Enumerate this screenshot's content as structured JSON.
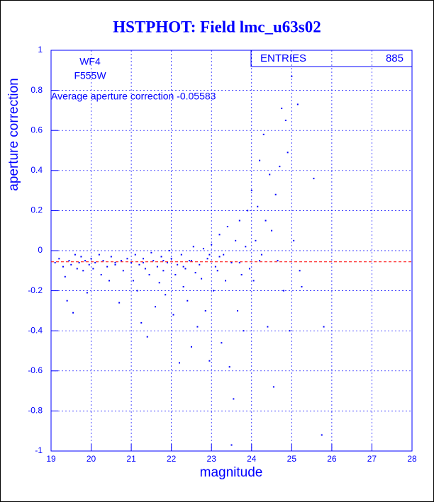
{
  "chart_data": {
    "type": "scatter",
    "title": "HSTPHOT: Field lmc_u63s02",
    "x_label": "magnitude",
    "y_label": "aperture correction",
    "annotations": [
      "WF4",
      "F555W",
      "Average aperture correction -0.05583"
    ],
    "stats": {
      "label": "ENTRIES",
      "value": 885
    },
    "hline": -0.05583,
    "hline_color": "#ff0000",
    "color": "#0000ff",
    "grid": true,
    "xlim": [
      19,
      28
    ],
    "ylim": [
      -1,
      1
    ],
    "xticks": [
      19,
      20,
      21,
      22,
      23,
      24,
      25,
      26,
      27,
      28
    ],
    "yticks": [
      -1,
      -0.8,
      -0.6,
      -0.4,
      -0.2,
      0,
      0.2,
      0.4,
      0.6,
      0.8,
      1
    ],
    "x": [
      19.1,
      19.2,
      19.3,
      19.35,
      19.4,
      19.45,
      19.5,
      19.55,
      19.6,
      19.65,
      19.7,
      19.75,
      19.8,
      19.85,
      19.9,
      19.95,
      20.0,
      20.05,
      20.1,
      20.2,
      20.25,
      20.3,
      20.4,
      20.45,
      20.5,
      20.6,
      20.7,
      20.75,
      20.8,
      20.9,
      21.0,
      21.05,
      21.1,
      21.15,
      21.2,
      21.25,
      21.3,
      21.35,
      21.4,
      21.45,
      21.5,
      21.55,
      21.6,
      21.65,
      21.7,
      21.75,
      21.8,
      21.85,
      21.9,
      21.95,
      22.0,
      22.05,
      22.1,
      22.15,
      22.2,
      22.25,
      22.3,
      22.35,
      22.4,
      22.45,
      22.5,
      22.55,
      22.6,
      22.65,
      22.7,
      22.75,
      22.8,
      22.85,
      22.9,
      22.95,
      23.0,
      23.05,
      23.1,
      23.15,
      23.2,
      23.25,
      23.3,
      23.35,
      23.4,
      23.45,
      23.5,
      23.55,
      23.6,
      23.65,
      23.7,
      23.75,
      23.8,
      23.85,
      23.9,
      23.95,
      24.0,
      24.05,
      24.1,
      24.15,
      24.2,
      24.25,
      24.3,
      24.35,
      24.4,
      24.45,
      24.5,
      24.55,
      24.6,
      24.65,
      24.7,
      24.75,
      24.8,
      24.85,
      24.9,
      24.95,
      25.0,
      25.05,
      25.15,
      25.2,
      25.25,
      25.55,
      25.75,
      25.8,
      23.5,
      22.95,
      22.5,
      22.3,
      23.2,
      21.8,
      21.3,
      20.6,
      23.7,
      24.2
    ],
    "y": [
      -0.06,
      -0.04,
      -0.08,
      -0.13,
      -0.25,
      -0.05,
      -0.07,
      -0.31,
      -0.02,
      -0.09,
      -0.06,
      -0.03,
      -0.1,
      -0.05,
      -0.21,
      -0.07,
      -0.04,
      -0.09,
      -0.06,
      -0.02,
      -0.12,
      -0.05,
      -0.08,
      -0.15,
      -0.03,
      -0.07,
      -0.26,
      -0.05,
      -0.1,
      -0.04,
      -0.06,
      -0.15,
      -0.02,
      -0.2,
      -0.07,
      -0.36,
      -0.04,
      -0.09,
      -0.43,
      -0.12,
      -0.01,
      -0.05,
      -0.28,
      -0.08,
      -0.16,
      -0.03,
      -0.1,
      -0.22,
      -0.06,
      0.0,
      -0.04,
      -0.32,
      -0.12,
      -0.07,
      -0.56,
      -0.02,
      -0.18,
      -0.09,
      -0.25,
      -0.05,
      -0.48,
      0.02,
      -0.11,
      -0.38,
      -0.07,
      -0.14,
      0.01,
      -0.3,
      -0.04,
      -0.55,
      0.03,
      -0.2,
      -0.08,
      -0.1,
      0.08,
      -0.46,
      -0.02,
      -0.15,
      0.12,
      -0.58,
      -0.06,
      -0.74,
      0.05,
      -0.3,
      0.15,
      -0.12,
      -0.4,
      0.02,
      0.2,
      -0.09,
      0.3,
      -0.15,
      0.05,
      0.22,
      0.45,
      -0.02,
      0.58,
      0.15,
      -0.38,
      0.38,
      0.1,
      -0.68,
      0.28,
      -0.05,
      0.42,
      0.71,
      -0.2,
      0.65,
      0.49,
      -0.4,
      0.87,
      0.05,
      0.73,
      -0.1,
      -0.18,
      0.36,
      -0.92,
      -0.38,
      -0.97,
      -0.02,
      -0.05,
      -0.08,
      -0.03,
      -0.05,
      -0.06,
      -0.06,
      -0.06,
      -0.05
    ]
  }
}
